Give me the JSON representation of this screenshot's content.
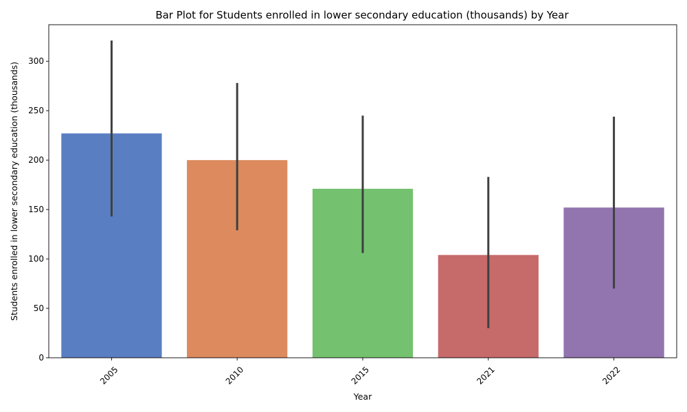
{
  "chart_data": {
    "type": "bar",
    "title": "Bar Plot for Students enrolled in lower secondary education (thousands) by Year",
    "xlabel": "Year",
    "ylabel": "Students enrolled in lower secondary education (thousands)",
    "categories": [
      "2005",
      "2010",
      "2015",
      "2021",
      "2022"
    ],
    "values": [
      227,
      200,
      171,
      104,
      152
    ],
    "error_low": [
      143,
      129,
      106,
      30,
      70
    ],
    "error_high": [
      321,
      278,
      245,
      183,
      244
    ],
    "colors": [
      "#5a7ec2",
      "#dc8a5e",
      "#74c26f",
      "#c76a6a",
      "#9275ae"
    ],
    "ylim": [
      0,
      337
    ],
    "yticks": [
      0,
      50,
      100,
      150,
      200,
      250,
      300
    ],
    "grid": false,
    "legend": "none"
  }
}
